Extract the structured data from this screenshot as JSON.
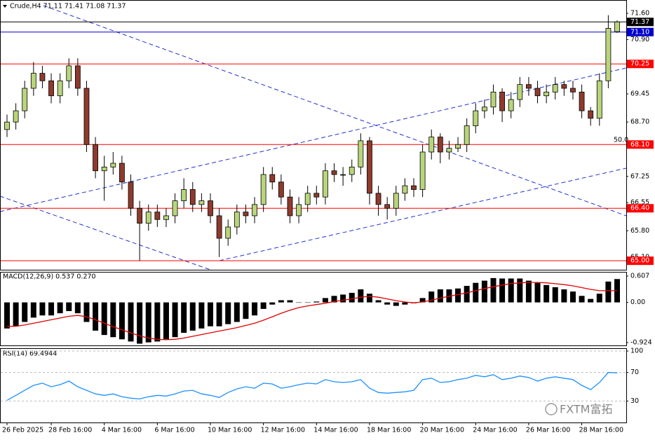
{
  "chart_data": [
    {
      "type": "candlestick",
      "title": "Crude,H4 71.11 71.41 71.08 71.37",
      "categories": [
        "26 Feb 2025",
        null,
        null,
        null,
        null,
        "28 Feb 16:00",
        null,
        null,
        null,
        null,
        null,
        "4 Mar 16:00",
        null,
        null,
        null,
        null,
        null,
        "6 Mar 16:00",
        null,
        null,
        null,
        null,
        null,
        "10 Mar 16:00",
        null,
        null,
        null,
        null,
        null,
        "12 Mar 16:00",
        null,
        null,
        null,
        null,
        null,
        "14 Mar 16:00",
        null,
        null,
        null,
        null,
        null,
        "18 Mar 16:00",
        null,
        null,
        null,
        null,
        null,
        "20 Mar 16:00",
        null,
        null,
        null,
        null,
        null,
        "24 Mar 16:00",
        null,
        null,
        null,
        null,
        null,
        "26 Mar 16:00",
        null,
        null,
        null,
        null,
        null,
        "28 Mar 16:00",
        null,
        null,
        null,
        null
      ],
      "open": [
        68.5,
        68.7,
        69.0,
        69.6,
        70.0,
        69.8,
        69.4,
        69.8,
        70.2,
        69.6,
        68.1,
        67.4,
        67.5,
        67.6,
        67.1,
        66.4,
        66.0,
        66.3,
        66.1,
        66.2,
        66.6,
        66.9,
        66.5,
        66.6,
        66.2,
        65.6,
        65.9,
        66.3,
        66.2,
        66.5,
        67.3,
        67.1,
        66.7,
        66.2,
        66.5,
        66.8,
        66.7,
        67.4,
        67.3,
        67.3,
        67.5,
        68.2,
        66.8,
        66.5,
        66.4,
        66.8,
        67.0,
        66.9,
        67.9,
        68.3,
        67.9,
        68.0,
        68.1,
        68.6,
        69.0,
        69.1,
        69.5,
        69.0,
        69.3,
        69.7,
        69.6,
        69.4,
        69.5,
        69.7,
        69.6,
        69.5,
        69.0,
        68.8,
        69.8,
        71.11
      ],
      "high": [
        68.9,
        69.2,
        69.8,
        70.3,
        70.2,
        70.0,
        70.0,
        70.4,
        70.4,
        69.8,
        68.3,
        67.8,
        67.9,
        67.8,
        67.3,
        66.6,
        66.5,
        66.5,
        66.4,
        66.8,
        67.2,
        67.1,
        66.8,
        66.8,
        66.4,
        66.1,
        66.5,
        66.5,
        66.7,
        67.5,
        67.5,
        67.3,
        66.9,
        66.7,
        67.0,
        67.0,
        67.6,
        67.6,
        67.5,
        67.7,
        68.4,
        68.3,
        67.0,
        66.7,
        67.0,
        67.2,
        67.2,
        68.1,
        68.5,
        68.4,
        68.2,
        68.3,
        68.8,
        69.2,
        69.3,
        69.7,
        69.6,
        69.5,
        69.9,
        69.9,
        69.8,
        69.7,
        69.9,
        69.8,
        69.8,
        69.7,
        69.1,
        70.0,
        71.55,
        71.41
      ],
      "low": [
        68.3,
        68.5,
        68.8,
        69.4,
        69.6,
        69.2,
        69.2,
        69.6,
        69.4,
        67.9,
        67.2,
        66.6,
        67.3,
        66.9,
        66.2,
        65.0,
        65.8,
        65.9,
        65.9,
        66.0,
        66.4,
        66.3,
        66.3,
        66.0,
        65.1,
        65.4,
        65.7,
        66.0,
        66.0,
        66.3,
        66.9,
        66.5,
        66.0,
        66.0,
        66.3,
        66.5,
        66.5,
        67.1,
        67.0,
        67.1,
        67.3,
        66.5,
        66.2,
        66.1,
        66.2,
        66.6,
        66.7,
        66.7,
        67.7,
        67.6,
        67.7,
        67.9,
        67.9,
        68.4,
        68.8,
        68.9,
        68.7,
        68.8,
        69.1,
        69.4,
        69.2,
        69.2,
        69.3,
        69.4,
        69.3,
        68.8,
        68.6,
        68.6,
        69.6,
        71.08
      ],
      "close": [
        68.7,
        69.0,
        69.6,
        70.0,
        69.8,
        69.4,
        69.8,
        70.2,
        69.6,
        68.1,
        67.4,
        67.5,
        67.6,
        67.1,
        66.4,
        66.0,
        66.3,
        66.1,
        66.2,
        66.6,
        66.9,
        66.5,
        66.6,
        66.2,
        65.6,
        65.9,
        66.3,
        66.2,
        66.5,
        67.3,
        67.1,
        66.7,
        66.2,
        66.5,
        66.8,
        66.7,
        67.4,
        67.3,
        67.3,
        67.5,
        68.2,
        66.8,
        66.5,
        66.4,
        66.8,
        67.0,
        66.9,
        67.9,
        68.3,
        67.9,
        68.0,
        68.1,
        68.6,
        69.0,
        69.1,
        69.5,
        69.0,
        69.3,
        69.7,
        69.6,
        69.4,
        69.5,
        69.7,
        69.6,
        69.5,
        69.0,
        68.8,
        69.8,
        71.2,
        71.37
      ],
      "up_color": "#b9d57c",
      "down_color": "#8e3a2c",
      "ylim": [
        64.76,
        71.955
      ],
      "yticks": [
        {
          "value": 71.6,
          "label": "71.60"
        },
        {
          "value": 70.9,
          "label": "70.90"
        },
        {
          "value": 69.45,
          "label": "69.45"
        },
        {
          "value": 68.7,
          "label": "68.70"
        },
        {
          "value": 67.25,
          "label": "67.25"
        },
        {
          "value": 66.55,
          "label": "66.55"
        },
        {
          "value": 65.8,
          "label": "65.80"
        },
        {
          "value": 65.1,
          "label": "65.10"
        }
      ],
      "levels": [
        {
          "value": 71.37,
          "label": "71.37",
          "color": "#000000"
        },
        {
          "value": 71.1,
          "label": "71.10",
          "color": "#0000cc"
        },
        {
          "value": 70.25,
          "label": "70.25",
          "color": "#ff0000"
        },
        {
          "value": 68.1,
          "label": "68.10",
          "color": "#ff0000"
        },
        {
          "value": 66.4,
          "label": "66.40",
          "color": "#ff0000"
        },
        {
          "value": 65.0,
          "label": "65.00",
          "color": "#ff0000"
        }
      ],
      "annotation": "50.0",
      "watermark": "FXTM富拓"
    },
    {
      "type": "macd",
      "title": "MACD(12,26,9) 0.537 0.270",
      "histogram": [
        -0.6,
        -0.55,
        -0.45,
        -0.35,
        -0.3,
        -0.3,
        -0.25,
        -0.2,
        -0.25,
        -0.45,
        -0.65,
        -0.75,
        -0.8,
        -0.85,
        -0.9,
        -0.95,
        -0.92,
        -0.9,
        -0.85,
        -0.8,
        -0.7,
        -0.65,
        -0.6,
        -0.55,
        -0.55,
        -0.5,
        -0.45,
        -0.38,
        -0.3,
        -0.15,
        -0.05,
        0.05,
        0.05,
        0.0,
        0.0,
        0.02,
        0.1,
        0.15,
        0.18,
        0.22,
        0.3,
        0.2,
        0.05,
        -0.05,
        -0.08,
        -0.05,
        -0.02,
        0.1,
        0.25,
        0.3,
        0.3,
        0.32,
        0.38,
        0.45,
        0.5,
        0.56,
        0.55,
        0.55,
        0.55,
        0.5,
        0.45,
        0.4,
        0.35,
        0.3,
        0.25,
        0.15,
        0.08,
        0.2,
        0.48,
        0.537
      ],
      "signal": [
        -0.55,
        -0.55,
        -0.52,
        -0.48,
        -0.44,
        -0.4,
        -0.36,
        -0.32,
        -0.3,
        -0.33,
        -0.4,
        -0.48,
        -0.56,
        -0.63,
        -0.7,
        -0.77,
        -0.82,
        -0.85,
        -0.86,
        -0.85,
        -0.82,
        -0.78,
        -0.74,
        -0.7,
        -0.66,
        -0.62,
        -0.58,
        -0.53,
        -0.48,
        -0.41,
        -0.33,
        -0.25,
        -0.18,
        -0.12,
        -0.08,
        -0.05,
        -0.02,
        0.02,
        0.05,
        0.08,
        0.12,
        0.14,
        0.12,
        0.08,
        0.04,
        0.01,
        -0.01,
        0.01,
        0.05,
        0.1,
        0.14,
        0.18,
        0.22,
        0.27,
        0.32,
        0.36,
        0.4,
        0.43,
        0.45,
        0.46,
        0.46,
        0.45,
        0.43,
        0.41,
        0.38,
        0.34,
        0.3,
        0.27,
        0.27,
        0.27
      ],
      "histogram_color": "#000000",
      "signal_color": "#e00000",
      "ylim": [
        -0.99,
        0.687
      ],
      "yticks": [
        0.607,
        {
          "value": 0,
          "label": "0.00"
        },
        -0.924
      ]
    },
    {
      "type": "line",
      "title": "RSI(14) 69.4944",
      "values": [
        31,
        38,
        45,
        52,
        55,
        50,
        53,
        58,
        50,
        45,
        40,
        38,
        40,
        36,
        34,
        33,
        36,
        38,
        37,
        40,
        44,
        45,
        40,
        38,
        35,
        42,
        47,
        50,
        48,
        55,
        54,
        48,
        50,
        53,
        55,
        54,
        60,
        57,
        56,
        57,
        60,
        48,
        42,
        41,
        42,
        43,
        45,
        60,
        62,
        56,
        57,
        60,
        62,
        66,
        64,
        67,
        60,
        62,
        65,
        63,
        58,
        62,
        64,
        62,
        60,
        52,
        46,
        56,
        70,
        69.4944
      ],
      "color": "#1e90ff",
      "ylim": [
        0,
        103
      ],
      "yticks": [
        100,
        70,
        30
      ],
      "grid": "dashed"
    }
  ]
}
